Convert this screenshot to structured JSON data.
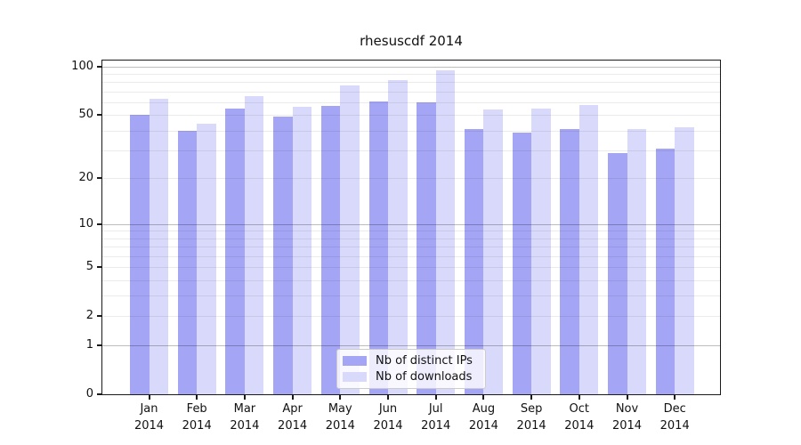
{
  "chart_data": {
    "type": "bar",
    "title": "rhesuscdf 2014",
    "categories": [
      "Jan",
      "Feb",
      "Mar",
      "Apr",
      "May",
      "Jun",
      "Jul",
      "Aug",
      "Sep",
      "Oct",
      "Nov",
      "Dec"
    ],
    "x_tick_second_line": "2014",
    "series": [
      {
        "name": "Nb of distinct IPs",
        "color": "#a5a5f6",
        "values": [
          50,
          40,
          55,
          49,
          57,
          61,
          60,
          41,
          39,
          41,
          29,
          31
        ]
      },
      {
        "name": "Nb of downloads",
        "color": "#d9d9fb",
        "values": [
          63,
          44,
          66,
          56,
          76,
          82,
          95,
          54,
          55,
          58,
          41,
          42
        ]
      }
    ],
    "yscale": "log10(1+x)",
    "ylim_bottom": 0,
    "ylim_top": 109,
    "y_tick_values": [
      0,
      1,
      2,
      5,
      10,
      20,
      50,
      100
    ],
    "y_major_gridlines": [
      1,
      10,
      100
    ],
    "y_minor_gridlines": [
      2,
      3,
      4,
      5,
      6,
      7,
      8,
      9,
      20,
      30,
      40,
      50,
      60,
      70,
      80,
      90
    ],
    "grid": true,
    "legend_position": "inside-bottom-center"
  }
}
